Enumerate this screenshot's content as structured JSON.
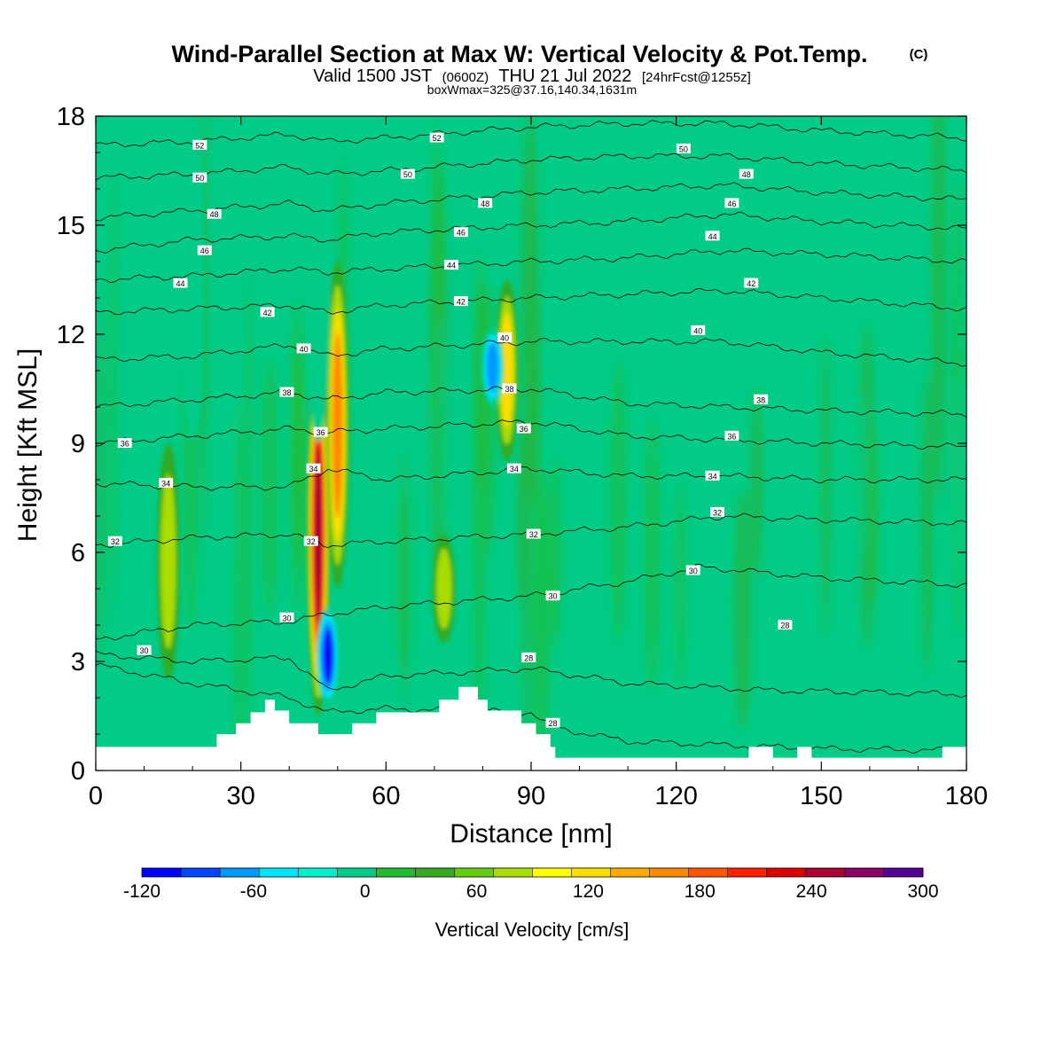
{
  "header": {
    "title_main": "Wind-Parallel Section at Max W: Vertical Velocity & Pot.Temp.",
    "title_mark": "(C)",
    "subtitle_a": "Valid 1500 JST",
    "subtitle_b": "(0600Z)",
    "subtitle_c": "THU 21 Jul 2022",
    "subtitle_d": "[24hrFcst@1255z]",
    "info": "boxWmax=325@37.16,140.34,1631m"
  },
  "chart_data": {
    "type": "heatmap",
    "title": "Wind-Parallel Section at Max W: Vertical Velocity & Pot.Temp.",
    "xlabel": "Distance [nm]",
    "ylabel": "Height [Kft MSL]",
    "xlim": [
      0,
      180
    ],
    "ylim": [
      0,
      18
    ],
    "x_ticks": [
      0,
      30,
      60,
      90,
      120,
      150,
      180
    ],
    "y_ticks": [
      0,
      3,
      6,
      9,
      12,
      15,
      18
    ],
    "x_tick_labels": [
      "0",
      "30",
      "60",
      "90",
      "120",
      "150",
      "180"
    ],
    "y_tick_labels": [
      "0",
      "3",
      "6",
      "9",
      "12",
      "15",
      "18"
    ],
    "colorbar": {
      "label": "Vertical Velocity [cm/s]",
      "min": -120,
      "max": 300,
      "step": 20,
      "tick_values": [
        -120,
        -60,
        0,
        60,
        120,
        180,
        240,
        300
      ],
      "tick_labels": [
        "-120",
        "-60",
        "0",
        "60",
        "120",
        "180",
        "240",
        "300"
      ],
      "colors": [
        "#0000ff",
        "#0044ff",
        "#0099ff",
        "#00e5ff",
        "#00f0cc",
        "#00cc88",
        "#22bb33",
        "#33aa22",
        "#66cc11",
        "#aadd00",
        "#ffff00",
        "#ffdd00",
        "#ffaa00",
        "#ff8800",
        "#ff5500",
        "#ff2200",
        "#dd0000",
        "#aa0033",
        "#880066",
        "#550099"
      ]
    },
    "background_color": "#00cc88",
    "updraft_cores": [
      {
        "x": 46,
        "y_bottom": 1.5,
        "y_top": 11.5,
        "peak": 220
      },
      {
        "x": 50,
        "y_bottom": 5.0,
        "y_top": 14.0,
        "peak": 160
      },
      {
        "x": 85,
        "y_bottom": 8.5,
        "y_top": 13.5,
        "peak": 120
      },
      {
        "x": 15,
        "y_bottom": 2.5,
        "y_top": 9.0,
        "peak": 60
      },
      {
        "x": 72,
        "y_bottom": 3.5,
        "y_top": 6.5,
        "peak": 60
      }
    ],
    "downdraft_cores": [
      {
        "x": 48,
        "y_bottom": 1.8,
        "y_top": 4.5,
        "peak": -110
      },
      {
        "x": 82,
        "y_bottom": 10.0,
        "y_top": 12.2,
        "peak": -80
      },
      {
        "x": 46,
        "y_bottom": 9.0,
        "y_top": 18.0,
        "peak": -40
      },
      {
        "x": 20,
        "y_bottom": 9.0,
        "y_top": 17.5,
        "peak": -30
      }
    ],
    "terrain": [
      [
        0,
        0.65
      ],
      [
        25,
        0.65
      ],
      [
        25,
        1.0
      ],
      [
        29,
        1.0
      ],
      [
        29,
        1.3
      ],
      [
        32,
        1.3
      ],
      [
        32,
        1.6
      ],
      [
        35,
        1.6
      ],
      [
        35,
        1.95
      ],
      [
        37,
        1.95
      ],
      [
        37,
        1.65
      ],
      [
        40,
        1.65
      ],
      [
        40,
        1.3
      ],
      [
        46,
        1.3
      ],
      [
        46,
        1.0
      ],
      [
        53,
        1.0
      ],
      [
        53,
        1.3
      ],
      [
        58,
        1.3
      ],
      [
        58,
        1.6
      ],
      [
        71,
        1.6
      ],
      [
        71,
        1.95
      ],
      [
        75,
        1.95
      ],
      [
        75,
        2.3
      ],
      [
        79,
        2.3
      ],
      [
        79,
        1.95
      ],
      [
        81,
        1.95
      ],
      [
        81,
        1.65
      ],
      [
        88,
        1.65
      ],
      [
        88,
        1.3
      ],
      [
        91,
        1.3
      ],
      [
        91,
        1.0
      ],
      [
        94,
        1.0
      ],
      [
        94,
        0.65
      ],
      [
        95,
        0.65
      ],
      [
        95,
        0.35
      ],
      [
        135,
        0.35
      ],
      [
        135,
        0.65
      ],
      [
        140,
        0.65
      ],
      [
        140,
        0.35
      ],
      [
        145,
        0.35
      ],
      [
        145,
        0.65
      ],
      [
        148,
        0.65
      ],
      [
        148,
        0.35
      ],
      [
        175,
        0.35
      ],
      [
        175,
        0.65
      ],
      [
        180,
        0.65
      ]
    ],
    "isentropes": [
      {
        "theta": 28,
        "profile": [
          [
            0,
            2.9
          ],
          [
            20,
            2.4
          ],
          [
            40,
            2.0
          ],
          [
            48,
            1.6
          ],
          [
            60,
            1.7
          ],
          [
            90,
            1.6
          ],
          [
            94,
            1.2
          ],
          [
            110,
            0.8
          ],
          [
            150,
            0.6
          ],
          [
            180,
            0.55
          ]
        ]
      },
      {
        "theta": 28,
        "profile": [
          [
            0,
            3.2
          ],
          [
            20,
            3.0
          ],
          [
            40,
            3.1
          ],
          [
            48,
            2.2
          ],
          [
            60,
            2.6
          ],
          [
            90,
            2.8
          ],
          [
            110,
            2.4
          ],
          [
            140,
            2.2
          ],
          [
            180,
            2.1
          ]
        ]
      },
      {
        "theta": 30,
        "profile": [
          [
            0,
            3.6
          ],
          [
            20,
            4.0
          ],
          [
            40,
            4.1
          ],
          [
            48,
            4.3
          ],
          [
            60,
            4.5
          ],
          [
            90,
            4.8
          ],
          [
            110,
            5.2
          ],
          [
            125,
            5.6
          ],
          [
            150,
            5.3
          ],
          [
            180,
            5.1
          ]
        ]
      },
      {
        "theta": 32,
        "profile": [
          [
            0,
            6.2
          ],
          [
            20,
            6.4
          ],
          [
            40,
            6.5
          ],
          [
            48,
            6.2
          ],
          [
            60,
            6.3
          ],
          [
            90,
            6.5
          ],
          [
            110,
            6.7
          ],
          [
            130,
            7.0
          ],
          [
            150,
            6.9
          ],
          [
            180,
            6.8
          ]
        ]
      },
      {
        "theta": 34,
        "profile": [
          [
            0,
            7.9
          ],
          [
            20,
            7.8
          ],
          [
            40,
            7.8
          ],
          [
            48,
            8.3
          ],
          [
            60,
            8.0
          ],
          [
            90,
            8.3
          ],
          [
            110,
            8.1
          ],
          [
            130,
            8.1
          ],
          [
            150,
            8.0
          ],
          [
            180,
            8.0
          ]
        ]
      },
      {
        "theta": 36,
        "profile": [
          [
            0,
            9.0
          ],
          [
            20,
            9.2
          ],
          [
            40,
            9.4
          ],
          [
            48,
            9.3
          ],
          [
            60,
            9.4
          ],
          [
            90,
            9.6
          ],
          [
            110,
            9.2
          ],
          [
            130,
            9.1
          ],
          [
            150,
            9.0
          ],
          [
            180,
            8.9
          ]
        ]
      },
      {
        "theta": 38,
        "profile": [
          [
            0,
            10.0
          ],
          [
            20,
            10.2
          ],
          [
            40,
            10.4
          ],
          [
            48,
            10.2
          ],
          [
            60,
            10.4
          ],
          [
            90,
            10.5
          ],
          [
            110,
            10.1
          ],
          [
            130,
            10.0
          ],
          [
            150,
            9.9
          ],
          [
            180,
            9.8
          ]
        ]
      },
      {
        "theta": 40,
        "profile": [
          [
            0,
            11.3
          ],
          [
            20,
            11.4
          ],
          [
            40,
            11.7
          ],
          [
            48,
            11.4
          ],
          [
            60,
            11.6
          ],
          [
            90,
            11.8
          ],
          [
            110,
            11.8
          ],
          [
            130,
            11.8
          ],
          [
            150,
            11.5
          ],
          [
            180,
            11.2
          ]
        ]
      },
      {
        "theta": 42,
        "profile": [
          [
            0,
            12.6
          ],
          [
            20,
            12.7
          ],
          [
            40,
            12.8
          ],
          [
            48,
            12.6
          ],
          [
            60,
            12.8
          ],
          [
            90,
            13.0
          ],
          [
            110,
            13.1
          ],
          [
            130,
            13.2
          ],
          [
            150,
            13.0
          ],
          [
            180,
            12.7
          ]
        ]
      },
      {
        "theta": 44,
        "profile": [
          [
            0,
            13.5
          ],
          [
            20,
            13.6
          ],
          [
            40,
            13.8
          ],
          [
            48,
            13.7
          ],
          [
            60,
            13.8
          ],
          [
            90,
            14.0
          ],
          [
            110,
            14.1
          ],
          [
            130,
            14.3
          ],
          [
            150,
            14.2
          ],
          [
            180,
            14.0
          ]
        ]
      },
      {
        "theta": 46,
        "profile": [
          [
            0,
            14.3
          ],
          [
            20,
            14.6
          ],
          [
            40,
            14.7
          ],
          [
            48,
            14.6
          ],
          [
            60,
            14.8
          ],
          [
            90,
            15.0
          ],
          [
            110,
            15.1
          ],
          [
            130,
            15.3
          ],
          [
            150,
            15.1
          ],
          [
            180,
            14.9
          ]
        ]
      },
      {
        "theta": 48,
        "profile": [
          [
            0,
            15.2
          ],
          [
            20,
            15.4
          ],
          [
            40,
            15.6
          ],
          [
            48,
            15.4
          ],
          [
            60,
            15.6
          ],
          [
            90,
            15.9
          ],
          [
            110,
            16.0
          ],
          [
            130,
            16.1
          ],
          [
            150,
            15.9
          ],
          [
            180,
            15.7
          ]
        ]
      },
      {
        "theta": 50,
        "profile": [
          [
            0,
            16.3
          ],
          [
            20,
            16.4
          ],
          [
            40,
            16.6
          ],
          [
            48,
            16.4
          ],
          [
            60,
            16.5
          ],
          [
            90,
            16.8
          ],
          [
            110,
            16.9
          ],
          [
            130,
            16.9
          ],
          [
            150,
            16.7
          ],
          [
            180,
            16.5
          ]
        ]
      },
      {
        "theta": 52,
        "profile": [
          [
            0,
            17.2
          ],
          [
            20,
            17.3
          ],
          [
            40,
            17.5
          ],
          [
            48,
            17.3
          ],
          [
            60,
            17.4
          ],
          [
            90,
            17.7
          ],
          [
            110,
            17.8
          ],
          [
            130,
            17.8
          ],
          [
            150,
            17.6
          ],
          [
            180,
            17.4
          ]
        ]
      }
    ],
    "contour_labels": [
      {
        "text": "52",
        "x": 21.5,
        "y": 17.2
      },
      {
        "text": "52",
        "x": 70.5,
        "y": 17.4
      },
      {
        "text": "50",
        "x": 21.5,
        "y": 16.3
      },
      {
        "text": "50",
        "x": 64.5,
        "y": 16.4
      },
      {
        "text": "50",
        "x": 121.5,
        "y": 17.1
      },
      {
        "text": "48",
        "x": 24.5,
        "y": 15.3
      },
      {
        "text": "48",
        "x": 80.5,
        "y": 15.6
      },
      {
        "text": "48",
        "x": 134.5,
        "y": 16.4
      },
      {
        "text": "46",
        "x": 22.5,
        "y": 14.3
      },
      {
        "text": "46",
        "x": 75.5,
        "y": 14.8
      },
      {
        "text": "46",
        "x": 131.5,
        "y": 15.6
      },
      {
        "text": "44",
        "x": 17.5,
        "y": 13.4
      },
      {
        "text": "44",
        "x": 73.5,
        "y": 13.9
      },
      {
        "text": "44",
        "x": 127.5,
        "y": 14.7
      },
      {
        "text": "42",
        "x": 35.5,
        "y": 12.6
      },
      {
        "text": "42",
        "x": 75.5,
        "y": 12.9
      },
      {
        "text": "42",
        "x": 135.5,
        "y": 13.4
      },
      {
        "text": "40",
        "x": 43,
        "y": 11.6
      },
      {
        "text": "40",
        "x": 84.5,
        "y": 11.9
      },
      {
        "text": "40",
        "x": 124.5,
        "y": 12.1
      },
      {
        "text": "38",
        "x": 39.5,
        "y": 10.4
      },
      {
        "text": "38",
        "x": 85.5,
        "y": 10.5
      },
      {
        "text": "38",
        "x": 137.5,
        "y": 10.2
      },
      {
        "text": "36",
        "x": 6,
        "y": 9.0
      },
      {
        "text": "36",
        "x": 46.5,
        "y": 9.3
      },
      {
        "text": "36",
        "x": 88.5,
        "y": 9.4
      },
      {
        "text": "36",
        "x": 131.5,
        "y": 9.2
      },
      {
        "text": "34",
        "x": 14.5,
        "y": 7.9
      },
      {
        "text": "34",
        "x": 45,
        "y": 8.3
      },
      {
        "text": "34",
        "x": 86.5,
        "y": 8.3
      },
      {
        "text": "34",
        "x": 127.5,
        "y": 8.1
      },
      {
        "text": "32",
        "x": 4,
        "y": 6.3
      },
      {
        "text": "32",
        "x": 44.5,
        "y": 6.3
      },
      {
        "text": "32",
        "x": 90.5,
        "y": 6.5
      },
      {
        "text": "32",
        "x": 128.5,
        "y": 7.1
      },
      {
        "text": "30",
        "x": 10,
        "y": 3.3
      },
      {
        "text": "30",
        "x": 39.5,
        "y": 4.2
      },
      {
        "text": "30",
        "x": 94.5,
        "y": 4.8
      },
      {
        "text": "30",
        "x": 123.5,
        "y": 5.5
      },
      {
        "text": "28",
        "x": 89.5,
        "y": 3.1
      },
      {
        "text": "28",
        "x": 94.5,
        "y": 1.3
      },
      {
        "text": "28",
        "x": 142.5,
        "y": 4.0
      }
    ]
  }
}
